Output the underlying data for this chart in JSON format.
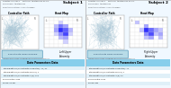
{
  "bg_color": "#f0f8ff",
  "panel_border": "#aaaaaa",
  "header_bg": "#ffffff",
  "table_header_bg": "#87ceeb",
  "table_row_colors": [
    "#e0f0f8",
    "#ffffff",
    "#e0f0f8",
    "#ffffff",
    "#e0f0f8"
  ],
  "button_bg": "#b8dce8",
  "button_border": "#5599bb",
  "subjects": [
    {
      "id": "Subject 1",
      "hdr1": "Quarter: fall 2021     Protocol: teletherapy-v2.0.1",
      "hdr2": "Disciplines: teletherapy",
      "hdr3": "Selection Protocol: 1-disc-therapy",
      "limb": "Left Upper\nExtremity",
      "button_text": "Export Data Downloadable",
      "avg_line": "Average of Sessions: following high-level therapy-sessions",
      "table_header": "Data Parameters Data",
      "table_rows": [
        "Total Repetitions (20 Distractor Completed): 11 / 11",
        "Total Repetitions (20 Distractor Missed): 2",
        "Total Repetitions (20 Distractors n/a): 108",
        "Success Ratio: 7025",
        "Scores: 61,397"
      ],
      "cp_color": "#aac8d8",
      "cp_seed": 1,
      "cp_xleft": true,
      "heatmap": [
        [
          0,
          0,
          0,
          0,
          0,
          0,
          0,
          0
        ],
        [
          0,
          0,
          0,
          2,
          0,
          0,
          0,
          0
        ],
        [
          0,
          0,
          3,
          6,
          4,
          0,
          0,
          0
        ],
        [
          0,
          0,
          4,
          9,
          7,
          3,
          0,
          0
        ],
        [
          0,
          0,
          2,
          5,
          8,
          2,
          0,
          0
        ],
        [
          0,
          0,
          0,
          3,
          4,
          0,
          0,
          0
        ],
        [
          0,
          0,
          0,
          0,
          2,
          0,
          0,
          0
        ],
        [
          0,
          0,
          0,
          0,
          0,
          0,
          0,
          0
        ]
      ]
    },
    {
      "id": "Subject 2",
      "hdr1": "Quarter: fall 2021     Protocol: teletherapy-v2.0.1",
      "hdr2": "Disciplines: teletherapy",
      "hdr3": "Selection Protocol: 1-disc-therapy",
      "limb": "Right Upper\nExtremity",
      "button_text": "Export Data Downloadable",
      "avg_line": "Average of Sessions: following high-level therapy-sessions",
      "table_header": "Data Parameters Data",
      "table_rows": [
        "Total Repetitions (20 Distractor Completed): 71",
        "Total Repetitions (20 Distractor Missed): 4",
        "Total Repetitions (20 Distractors n/a): 10",
        "Success Ratio: 1573",
        "Scores: 892"
      ],
      "cp_color": "#aac8d8",
      "cp_seed": 7,
      "cp_xleft": false,
      "heatmap": [
        [
          0,
          0,
          0,
          0,
          0,
          0,
          0,
          0
        ],
        [
          0,
          2,
          0,
          0,
          0,
          0,
          0,
          0
        ],
        [
          0,
          0,
          0,
          3,
          0,
          0,
          0,
          0
        ],
        [
          0,
          0,
          2,
          7,
          5,
          3,
          2,
          0
        ],
        [
          0,
          0,
          0,
          4,
          6,
          2,
          3,
          0
        ],
        [
          0,
          0,
          0,
          2,
          3,
          0,
          2,
          0
        ],
        [
          0,
          0,
          0,
          0,
          0,
          0,
          0,
          0
        ],
        [
          0,
          0,
          0,
          0,
          0,
          0,
          0,
          0
        ]
      ]
    }
  ]
}
